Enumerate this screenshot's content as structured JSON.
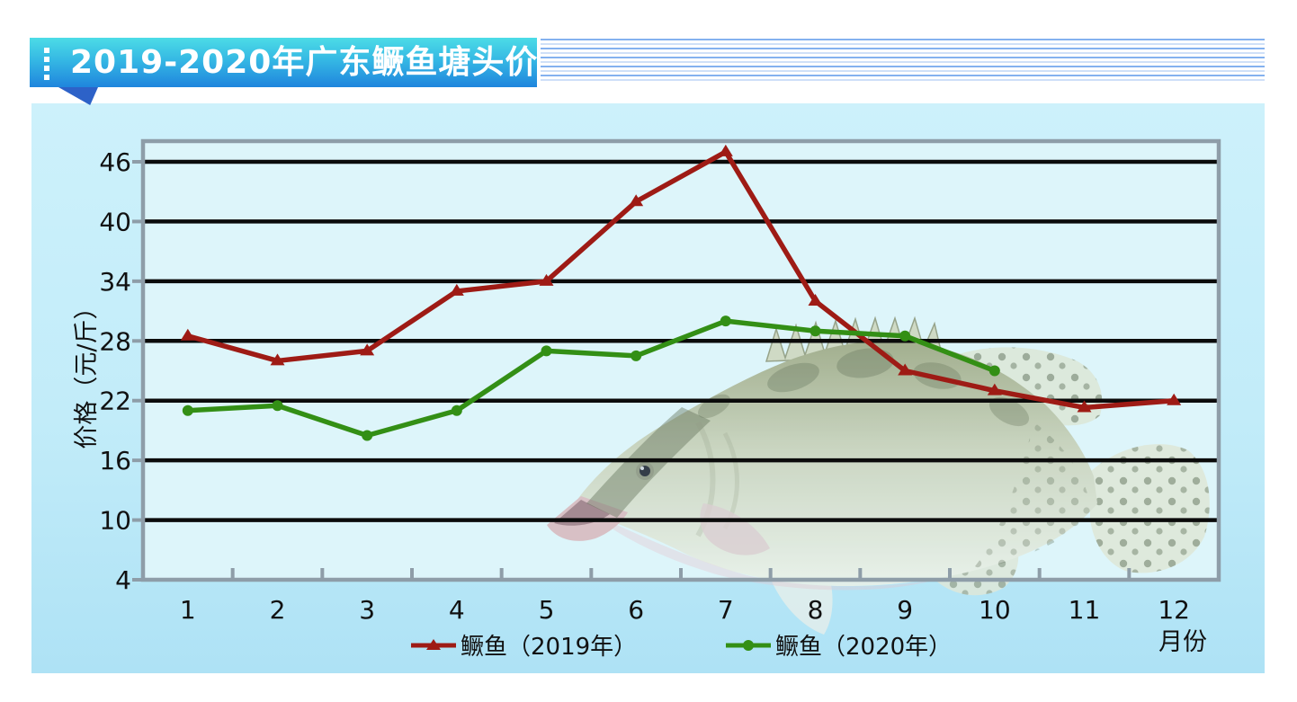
{
  "header": {
    "title": "2019-2020年广东鳜鱼塘头价"
  },
  "chart_data": {
    "type": "line",
    "title": "2019-2020年广东鳜鱼塘头价",
    "categories": [
      "1",
      "2",
      "3",
      "4",
      "5",
      "6",
      "7",
      "8",
      "9",
      "10",
      "11",
      "12"
    ],
    "series": [
      {
        "name": "鳜鱼（2019年）",
        "color": "#9E1B15",
        "marker": "triangle",
        "values": [
          28.5,
          26,
          27,
          33,
          34,
          42,
          47,
          32,
          25,
          23,
          21.3,
          22
        ]
      },
      {
        "name": "鳜鱼（2020年）",
        "color": "#338F15",
        "marker": "circle",
        "values": [
          21,
          21.5,
          18.5,
          21,
          27,
          26.5,
          30,
          29,
          28.5,
          25
        ]
      }
    ],
    "xlabel": "月份",
    "ylabel": "价格（元/斤）",
    "ylim": [
      4,
      46
    ],
    "yticks": [
      4,
      10,
      16,
      22,
      28,
      34,
      40,
      46
    ],
    "grid": "horizontal-black",
    "legend_position": "bottom",
    "watermark": "mandarin-fish-photo"
  }
}
